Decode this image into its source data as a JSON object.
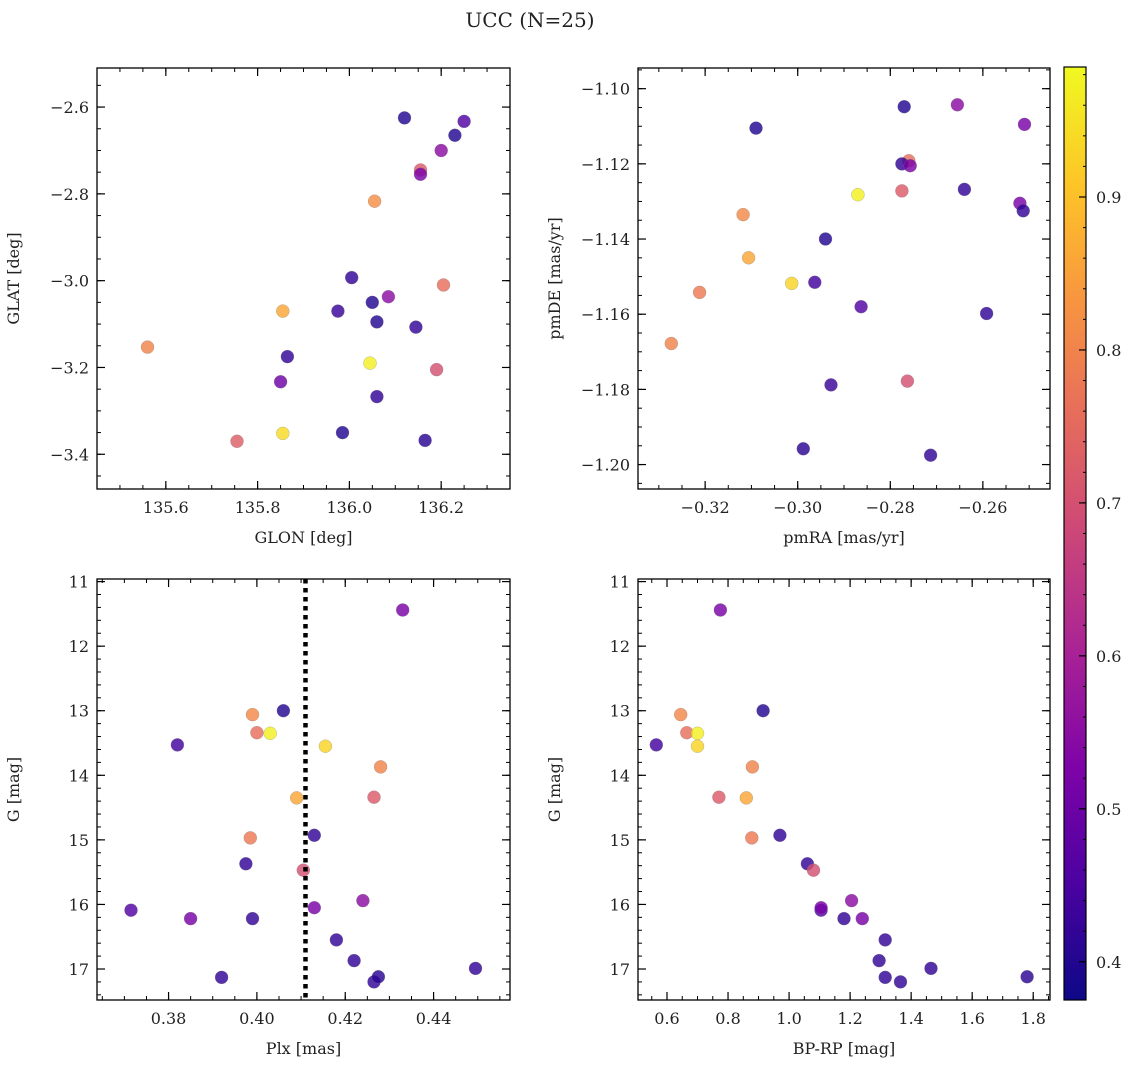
{
  "figure": {
    "title": "UCC (N=25)"
  },
  "chart_data": [
    {
      "type": "scatter",
      "xlabel": "GLON [deg]",
      "ylabel": "GLAT [deg]",
      "xlim": [
        135.45,
        136.35
      ],
      "ylim": [
        -3.48,
        -2.51
      ],
      "xticks": [
        135.6,
        135.8,
        136.0,
        136.2
      ],
      "xtick_labels": [
        "135.6",
        "135.8",
        "136.0",
        "136.2"
      ],
      "yticks": [
        -3.4,
        -3.2,
        -3.0,
        -2.8,
        -2.6
      ],
      "ytick_labels": [
        "−3.4",
        "−3.2",
        "−3.0",
        "−2.8",
        "−2.6"
      ],
      "points": [
        {
          "x": 136.12,
          "y": -2.625,
          "c": 0.4
        },
        {
          "x": 136.25,
          "y": -2.633,
          "c": 0.46
        },
        {
          "x": 136.23,
          "y": -2.665,
          "c": 0.4
        },
        {
          "x": 136.2,
          "y": -2.7,
          "c": 0.55
        },
        {
          "x": 136.155,
          "y": -2.745,
          "c": 0.72
        },
        {
          "x": 136.155,
          "y": -2.755,
          "c": 0.52
        },
        {
          "x": 136.055,
          "y": -2.817,
          "c": 0.82
        },
        {
          "x": 136.005,
          "y": -2.993,
          "c": 0.42
        },
        {
          "x": 136.085,
          "y": -3.037,
          "c": 0.55
        },
        {
          "x": 136.205,
          "y": -3.01,
          "c": 0.76
        },
        {
          "x": 136.05,
          "y": -3.05,
          "c": 0.4
        },
        {
          "x": 135.975,
          "y": -3.07,
          "c": 0.43
        },
        {
          "x": 135.855,
          "y": -3.07,
          "c": 0.86
        },
        {
          "x": 136.06,
          "y": -3.095,
          "c": 0.4
        },
        {
          "x": 136.145,
          "y": -3.107,
          "c": 0.42
        },
        {
          "x": 135.56,
          "y": -3.153,
          "c": 0.8
        },
        {
          "x": 135.865,
          "y": -3.175,
          "c": 0.42
        },
        {
          "x": 136.045,
          "y": -3.19,
          "c": 0.97
        },
        {
          "x": 136.19,
          "y": -3.205,
          "c": 0.7
        },
        {
          "x": 135.85,
          "y": -3.233,
          "c": 0.5
        },
        {
          "x": 136.06,
          "y": -3.267,
          "c": 0.42
        },
        {
          "x": 135.855,
          "y": -3.352,
          "c": 0.94
        },
        {
          "x": 135.985,
          "y": -3.35,
          "c": 0.4
        },
        {
          "x": 135.755,
          "y": -3.37,
          "c": 0.73
        },
        {
          "x": 136.165,
          "y": -3.368,
          "c": 0.41
        }
      ]
    },
    {
      "type": "scatter",
      "xlabel": "pmRA [mas/yr]",
      "ylabel": "pmDE [mas/yr]",
      "xlim": [
        -0.3345,
        -0.2455
      ],
      "ylim": [
        -1.2065,
        -1.0945
      ],
      "xticks": [
        -0.32,
        -0.3,
        -0.28,
        -0.26
      ],
      "xtick_labels": [
        "−0.32",
        "−0.30",
        "−0.28",
        "−0.26"
      ],
      "yticks": [
        -1.2,
        -1.18,
        -1.16,
        -1.14,
        -1.12,
        -1.1
      ],
      "ytick_labels": [
        "−1.20",
        "−1.18",
        "−1.16",
        "−1.14",
        "−1.12",
        "−1.10"
      ],
      "points": [
        {
          "x": -0.2655,
          "y": -1.1043,
          "c": 0.55
        },
        {
          "x": -0.277,
          "y": -1.1048,
          "c": 0.4
        },
        {
          "x": -0.251,
          "y": -1.1095,
          "c": 0.52
        },
        {
          "x": -0.309,
          "y": -1.1105,
          "c": 0.4
        },
        {
          "x": -0.276,
          "y": -1.1192,
          "c": 0.76
        },
        {
          "x": -0.2775,
          "y": -1.12,
          "c": 0.42
        },
        {
          "x": -0.287,
          "y": -1.1282,
          "c": 0.97
        },
        {
          "x": -0.2775,
          "y": -1.1272,
          "c": 0.72
        },
        {
          "x": -0.264,
          "y": -1.1268,
          "c": 0.42
        },
        {
          "x": -0.252,
          "y": -1.1305,
          "c": 0.52
        },
        {
          "x": -0.2513,
          "y": -1.1325,
          "c": 0.42
        },
        {
          "x": -0.3118,
          "y": -1.1335,
          "c": 0.81
        },
        {
          "x": -0.294,
          "y": -1.14,
          "c": 0.4
        },
        {
          "x": -0.3106,
          "y": -1.145,
          "c": 0.86
        },
        {
          "x": -0.3013,
          "y": -1.1518,
          "c": 0.93
        },
        {
          "x": -0.2963,
          "y": -1.1515,
          "c": 0.44
        },
        {
          "x": -0.3212,
          "y": -1.1542,
          "c": 0.78
        },
        {
          "x": -0.2863,
          "y": -1.158,
          "c": 0.46
        },
        {
          "x": -0.2592,
          "y": -1.1598,
          "c": 0.42
        },
        {
          "x": -0.3273,
          "y": -1.1678,
          "c": 0.8
        },
        {
          "x": -0.2763,
          "y": -1.1778,
          "c": 0.7
        },
        {
          "x": -0.2928,
          "y": -1.1788,
          "c": 0.43
        },
        {
          "x": -0.2988,
          "y": -1.1958,
          "c": 0.41
        },
        {
          "x": -0.2713,
          "y": -1.1975,
          "c": 0.42
        },
        {
          "x": -0.2757,
          "y": -1.1205,
          "c": 0.52
        }
      ]
    },
    {
      "type": "scatter",
      "xlabel": "Plx [mas]",
      "ylabel": "G [mag]",
      "xlim": [
        0.3638,
        0.4573
      ],
      "ylim": [
        17.48,
        10.96
      ],
      "y_inverted": true,
      "vline": {
        "x": 0.411,
        "style": "dotted"
      },
      "xticks": [
        0.38,
        0.4,
        0.42,
        0.44
      ],
      "xtick_labels": [
        "0.38",
        "0.40",
        "0.42",
        "0.44"
      ],
      "yticks": [
        11,
        12,
        13,
        14,
        15,
        16,
        17
      ],
      "ytick_labels": [
        "11",
        "12",
        "13",
        "14",
        "15",
        "16",
        "17"
      ],
      "points": [
        {
          "x": 0.433,
          "y": 11.44,
          "c": 0.52
        },
        {
          "x": 0.399,
          "y": 13.06,
          "c": 0.81
        },
        {
          "x": 0.406,
          "y": 13.0,
          "c": 0.4
        },
        {
          "x": 0.4,
          "y": 13.34,
          "c": 0.76
        },
        {
          "x": 0.403,
          "y": 13.35,
          "c": 0.97
        },
        {
          "x": 0.382,
          "y": 13.53,
          "c": 0.44
        },
        {
          "x": 0.4155,
          "y": 13.55,
          "c": 0.93
        },
        {
          "x": 0.428,
          "y": 13.87,
          "c": 0.8
        },
        {
          "x": 0.409,
          "y": 14.35,
          "c": 0.86
        },
        {
          "x": 0.4265,
          "y": 14.34,
          "c": 0.72
        },
        {
          "x": 0.413,
          "y": 14.93,
          "c": 0.42
        },
        {
          "x": 0.3985,
          "y": 14.97,
          "c": 0.78
        },
        {
          "x": 0.3975,
          "y": 15.37,
          "c": 0.42
        },
        {
          "x": 0.4105,
          "y": 15.47,
          "c": 0.7
        },
        {
          "x": 0.424,
          "y": 15.94,
          "c": 0.55
        },
        {
          "x": 0.3715,
          "y": 16.09,
          "c": 0.46
        },
        {
          "x": 0.413,
          "y": 16.05,
          "c": 0.52
        },
        {
          "x": 0.385,
          "y": 16.22,
          "c": 0.52
        },
        {
          "x": 0.399,
          "y": 16.22,
          "c": 0.42
        },
        {
          "x": 0.418,
          "y": 16.55,
          "c": 0.42
        },
        {
          "x": 0.422,
          "y": 16.87,
          "c": 0.42
        },
        {
          "x": 0.392,
          "y": 17.13,
          "c": 0.42
        },
        {
          "x": 0.4265,
          "y": 17.2,
          "c": 0.42
        },
        {
          "x": 0.4275,
          "y": 17.12,
          "c": 0.41
        },
        {
          "x": 0.4495,
          "y": 16.99,
          "c": 0.42
        }
      ]
    },
    {
      "type": "scatter",
      "xlabel": "BP-RP [mag]",
      "ylabel": "G [mag]",
      "xlim": [
        0.505,
        1.855
      ],
      "ylim": [
        17.48,
        10.96
      ],
      "y_inverted": true,
      "xticks": [
        0.6,
        0.8,
        1.0,
        1.2,
        1.4,
        1.6,
        1.8
      ],
      "xtick_labels": [
        "0.6",
        "0.8",
        "1.0",
        "1.2",
        "1.4",
        "1.6",
        "1.8"
      ],
      "yticks": [
        11,
        12,
        13,
        14,
        15,
        16,
        17
      ],
      "ytick_labels": [
        "11",
        "12",
        "13",
        "14",
        "15",
        "16",
        "17"
      ],
      "points": [
        {
          "x": 0.775,
          "y": 11.44,
          "c": 0.52
        },
        {
          "x": 0.645,
          "y": 13.06,
          "c": 0.81
        },
        {
          "x": 0.915,
          "y": 13.0,
          "c": 0.4
        },
        {
          "x": 0.665,
          "y": 13.34,
          "c": 0.76
        },
        {
          "x": 0.7,
          "y": 13.35,
          "c": 0.97
        },
        {
          "x": 0.565,
          "y": 13.53,
          "c": 0.44
        },
        {
          "x": 0.7,
          "y": 13.55,
          "c": 0.93
        },
        {
          "x": 0.88,
          "y": 13.87,
          "c": 0.8
        },
        {
          "x": 0.86,
          "y": 14.35,
          "c": 0.86
        },
        {
          "x": 0.77,
          "y": 14.34,
          "c": 0.72
        },
        {
          "x": 0.97,
          "y": 14.93,
          "c": 0.42
        },
        {
          "x": 0.878,
          "y": 14.97,
          "c": 0.78
        },
        {
          "x": 1.06,
          "y": 15.37,
          "c": 0.42
        },
        {
          "x": 1.08,
          "y": 15.47,
          "c": 0.7
        },
        {
          "x": 1.205,
          "y": 15.94,
          "c": 0.55
        },
        {
          "x": 1.105,
          "y": 16.09,
          "c": 0.46
        },
        {
          "x": 1.105,
          "y": 16.05,
          "c": 0.52
        },
        {
          "x": 1.24,
          "y": 16.22,
          "c": 0.52
        },
        {
          "x": 1.18,
          "y": 16.22,
          "c": 0.42
        },
        {
          "x": 1.315,
          "y": 16.55,
          "c": 0.42
        },
        {
          "x": 1.295,
          "y": 16.87,
          "c": 0.42
        },
        {
          "x": 1.315,
          "y": 17.13,
          "c": 0.42
        },
        {
          "x": 1.365,
          "y": 17.2,
          "c": 0.42
        },
        {
          "x": 1.465,
          "y": 16.99,
          "c": 0.42
        },
        {
          "x": 1.78,
          "y": 17.12,
          "c": 0.41
        }
      ]
    }
  ],
  "colorbar": {
    "colormap": "plasma",
    "range": [
      0.375,
      0.985
    ],
    "ticks": [
      0.4,
      0.5,
      0.6,
      0.7,
      0.8,
      0.9
    ],
    "tick_labels": [
      "0.4",
      "0.5",
      "0.6",
      "0.7",
      "0.8",
      "0.9"
    ]
  }
}
